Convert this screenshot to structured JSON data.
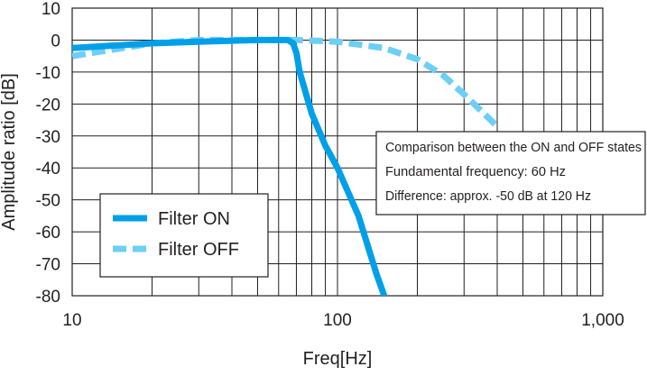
{
  "chart_data": {
    "type": "line",
    "title": "",
    "xlabel": "Freq[Hz]",
    "ylabel": "Amplitude ratio [dB]",
    "x_scale": "log",
    "xlim": [
      10,
      1000
    ],
    "ylim": [
      -80,
      10
    ],
    "x_ticks": [
      10,
      100,
      1000
    ],
    "x_tick_labels": [
      "10",
      "100",
      "1,000"
    ],
    "y_ticks": [
      10,
      0,
      -10,
      -20,
      -30,
      -40,
      -50,
      -60,
      -70,
      -80
    ],
    "y_tick_labels": [
      "10",
      "0",
      "-10",
      "-20",
      "-30",
      "-40",
      "-50",
      "-60",
      "-70",
      "-80"
    ],
    "grid": true,
    "legend_position": "lower-left",
    "series": [
      {
        "name": "Filter ON",
        "color": "#00a0e9",
        "style": "solid",
        "x": [
          10,
          20,
          30,
          50,
          65,
          68,
          70,
          72,
          80,
          90,
          100,
          120,
          140,
          150
        ],
        "y": [
          -2.5,
          -1,
          -0.5,
          0,
          0,
          -1,
          -4,
          -10,
          -23,
          -33,
          -40,
          -55,
          -73,
          -80
        ]
      },
      {
        "name": "Filter OFF",
        "color": "#6ccff6",
        "style": "dashed",
        "x": [
          10,
          20,
          30,
          50,
          70,
          100,
          150,
          200,
          250,
          300,
          400
        ],
        "y": [
          -5,
          -1,
          0,
          0,
          0,
          -0.5,
          -2.5,
          -6,
          -11,
          -17,
          -27
        ]
      }
    ],
    "annotation": {
      "lines": [
        "Comparison between the ON and OFF states",
        "Fundamental frequency: 60 Hz",
        "Difference: approx. -50 dB at 120 Hz"
      ]
    }
  }
}
